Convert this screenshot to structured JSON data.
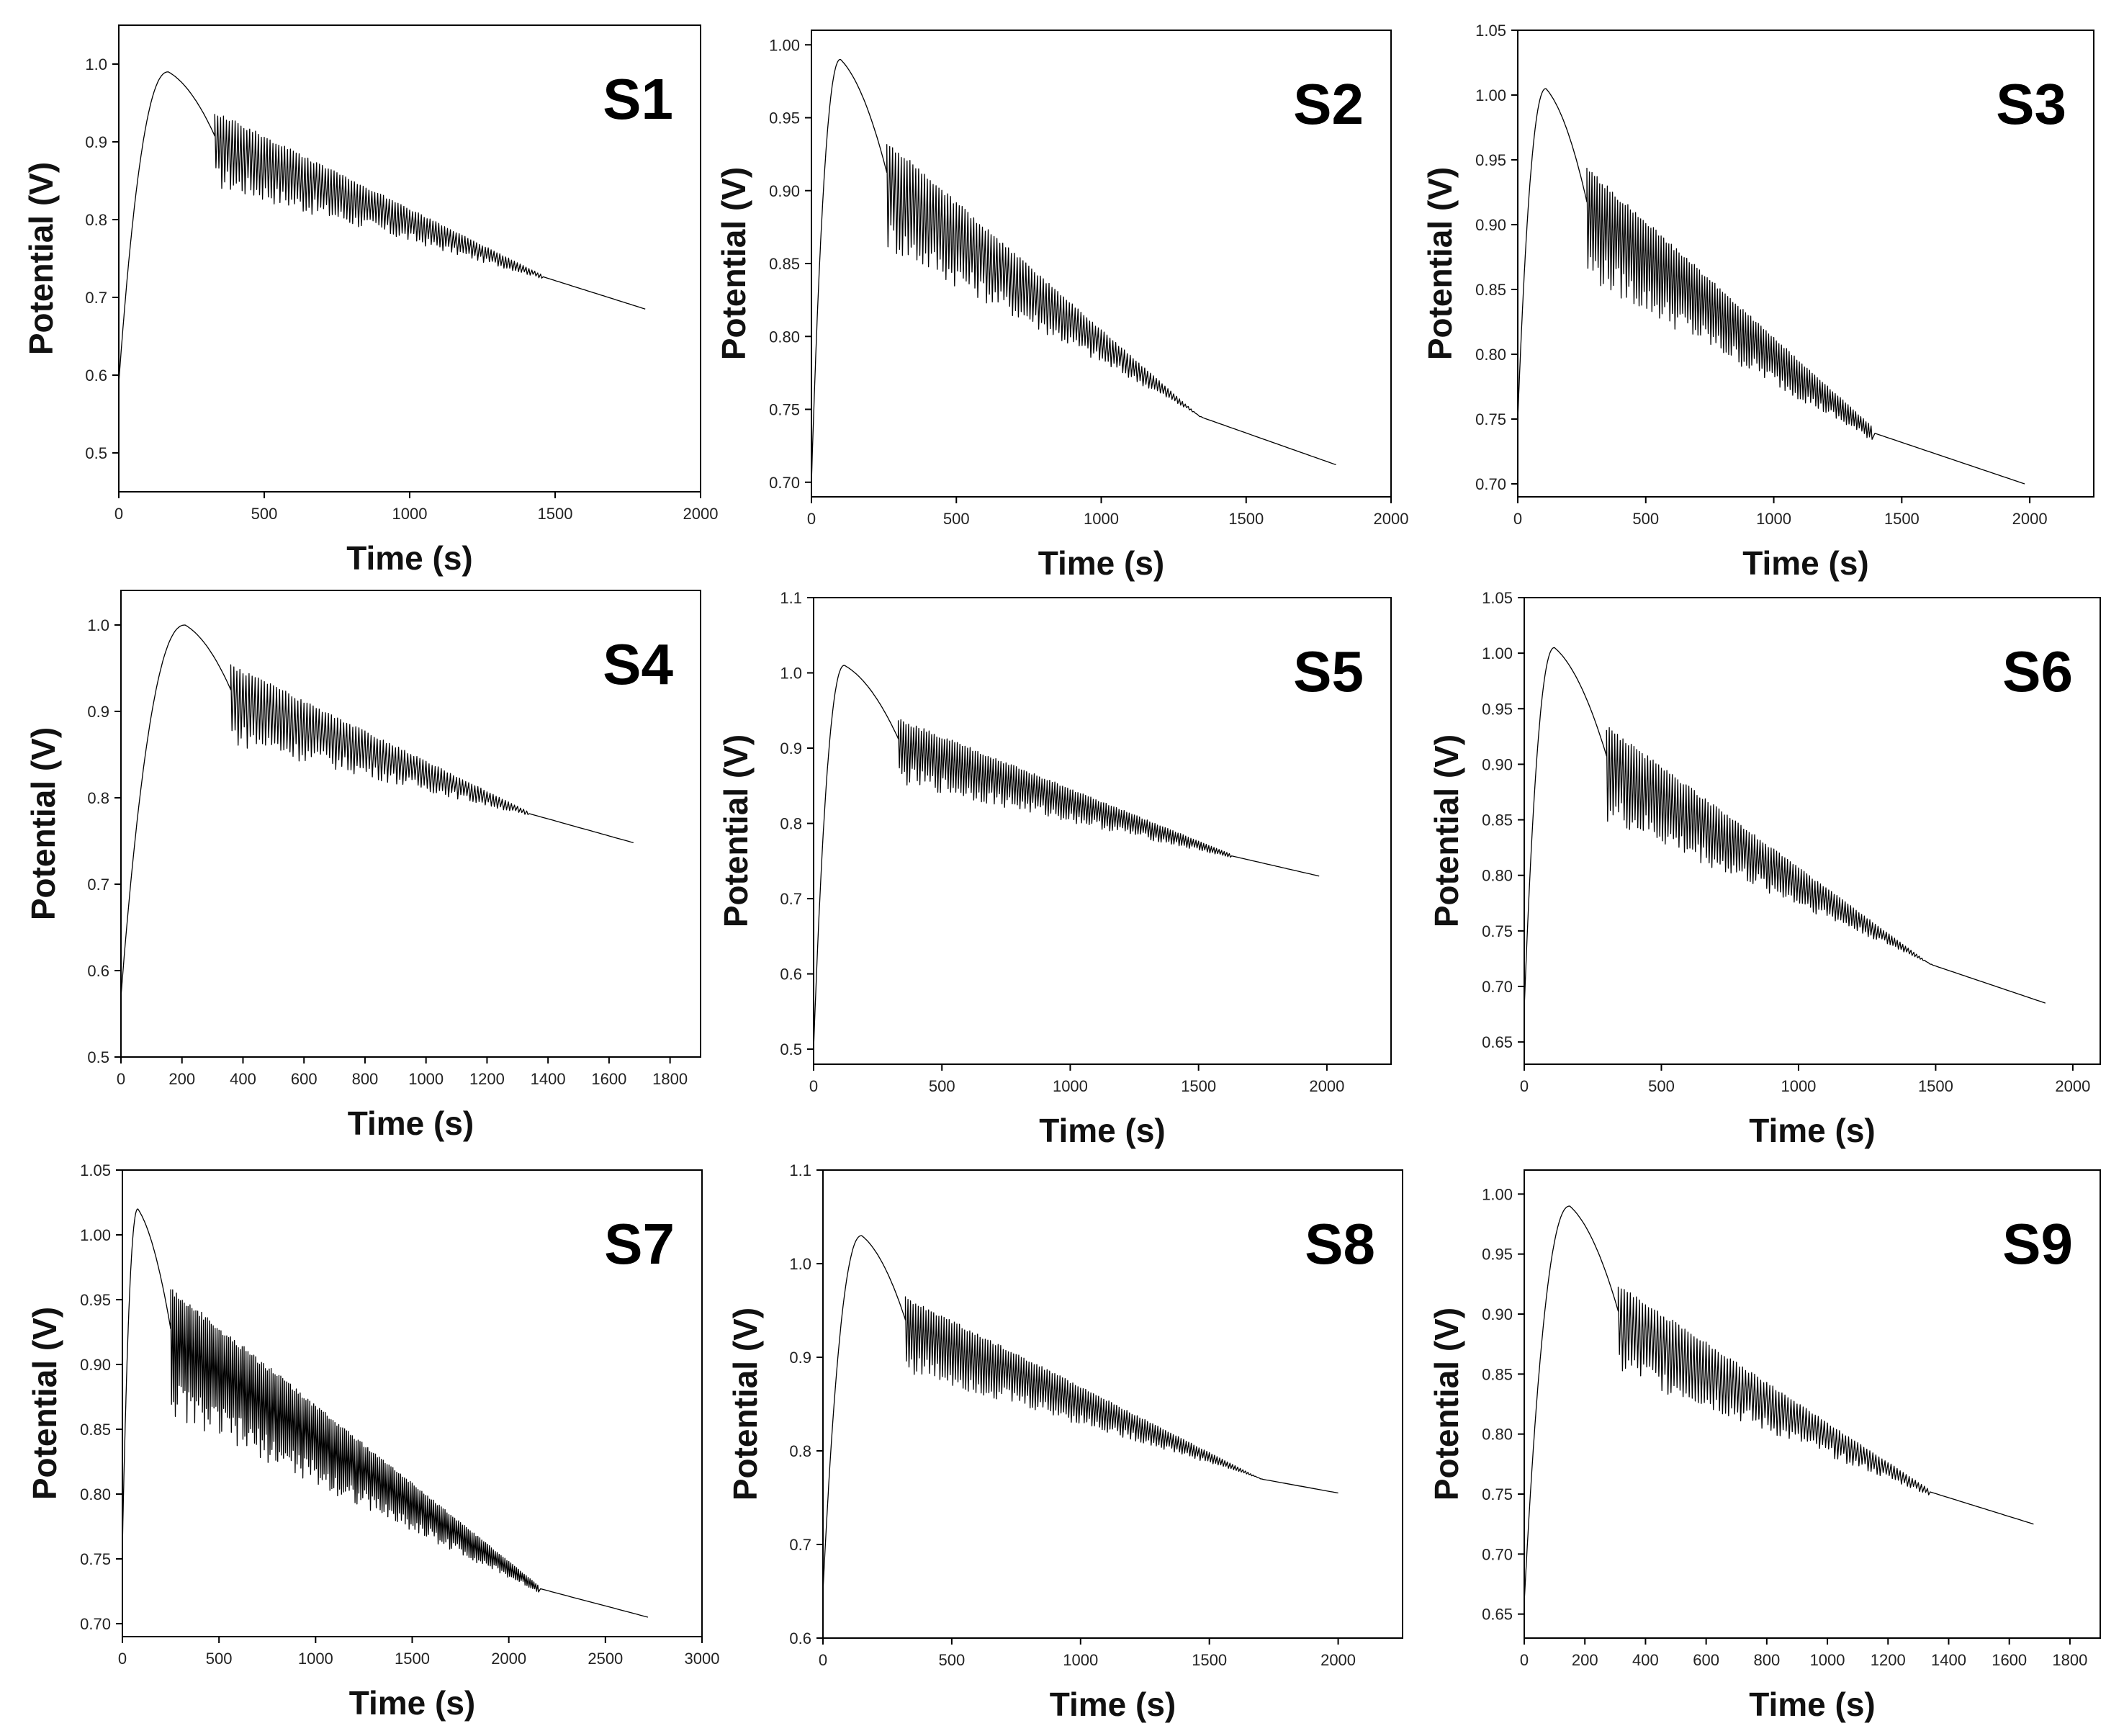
{
  "chart_data": [
    {
      "type": "line",
      "label": "S1",
      "xlabel": "Time (s)",
      "ylabel": "Potential (V)",
      "xlim": [
        0,
        2000
      ],
      "ylim": [
        0.45,
        1.05
      ],
      "xticks": [
        0,
        500,
        1000,
        1500,
        2000
      ],
      "yticks": [
        0.5,
        0.6,
        0.7,
        0.8,
        0.9,
        1.0
      ],
      "ydec": 1,
      "peak": {
        "t": 170,
        "v": 0.99
      },
      "onset_t": 330,
      "end_t": 1810,
      "end_v": 0.685,
      "start_v": 0.59,
      "osc_top": [
        0.94,
        0.73
      ],
      "osc_bottom": [
        0.855,
        0.725
      ],
      "osc_end_t": 1450,
      "grid": false,
      "legend": "none"
    },
    {
      "type": "line",
      "label": "S2",
      "xlabel": "Time (s)",
      "ylabel": "Potential (V)",
      "xlim": [
        0,
        2000
      ],
      "ylim": [
        0.69,
        1.01
      ],
      "xticks": [
        0,
        500,
        1000,
        1500,
        2000
      ],
      "yticks": [
        0.7,
        0.75,
        0.8,
        0.85,
        0.9,
        0.95,
        1.0
      ],
      "ydec": 2,
      "peak": {
        "t": 100,
        "v": 0.99
      },
      "onset_t": 260,
      "end_t": 1810,
      "end_v": 0.712,
      "start_v": 0.7,
      "osc_top": [
        0.935,
        0.745
      ],
      "osc_bottom": [
        0.87,
        0.745
      ],
      "osc_end_t": 1340,
      "grid": false,
      "legend": "none"
    },
    {
      "type": "line",
      "label": "S3",
      "xlabel": "Time (s)",
      "ylabel": "Potential (V)",
      "xlim": [
        0,
        2250
      ],
      "ylim": [
        0.69,
        1.05
      ],
      "xticks": [
        0,
        500,
        1000,
        1500,
        2000
      ],
      "yticks": [
        0.7,
        0.75,
        0.8,
        0.85,
        0.9,
        0.95,
        1.0,
        1.05
      ],
      "ydec": 2,
      "peak": {
        "t": 110,
        "v": 1.005
      },
      "onset_t": 270,
      "end_t": 1980,
      "end_v": 0.7,
      "start_v": 0.75,
      "osc_top": [
        0.945,
        0.745
      ],
      "osc_bottom": [
        0.87,
        0.735
      ],
      "osc_end_t": 1380,
      "grid": false,
      "legend": "none"
    },
    {
      "type": "line",
      "label": "S4",
      "xlabel": "Time (s)",
      "ylabel": "Potential (V)",
      "xlim": [
        0,
        1900
      ],
      "ylim": [
        0.5,
        1.04
      ],
      "xticks": [
        0,
        200,
        400,
        600,
        800,
        1000,
        1200,
        1400,
        1600,
        1800
      ],
      "yticks": [
        0.5,
        0.6,
        0.7,
        0.8,
        0.9,
        1.0
      ],
      "ydec": 1,
      "peak": {
        "t": 210,
        "v": 1.0
      },
      "onset_t": 360,
      "end_t": 1680,
      "end_v": 0.748,
      "start_v": 0.57,
      "osc_top": [
        0.955,
        0.785
      ],
      "osc_bottom": [
        0.875,
        0.78
      ],
      "osc_end_t": 1330,
      "grid": false,
      "legend": "none"
    },
    {
      "type": "line",
      "label": "S5",
      "xlabel": "Time (s)",
      "ylabel": "Potential (V)",
      "xlim": [
        0,
        2250
      ],
      "ylim": [
        0.48,
        1.1
      ],
      "xticks": [
        0,
        500,
        1000,
        1500,
        2000
      ],
      "yticks": [
        0.5,
        0.6,
        0.7,
        0.8,
        0.9,
        1.0,
        1.1
      ],
      "ydec": 1,
      "peak": {
        "t": 120,
        "v": 1.01
      },
      "onset_t": 330,
      "end_t": 1970,
      "end_v": 0.73,
      "start_v": 0.5,
      "osc_top": [
        0.94,
        0.76
      ],
      "osc_bottom": [
        0.865,
        0.755
      ],
      "osc_end_t": 1620,
      "grid": false,
      "legend": "none"
    },
    {
      "type": "line",
      "label": "S6",
      "xlabel": "Time (s)",
      "ylabel": "Potential (V)",
      "xlim": [
        0,
        2100
      ],
      "ylim": [
        0.63,
        1.05
      ],
      "xticks": [
        0,
        500,
        1000,
        1500,
        2000
      ],
      "yticks": [
        0.65,
        0.7,
        0.75,
        0.8,
        0.85,
        0.9,
        0.95,
        1.0,
        1.05
      ],
      "ydec": 2,
      "peak": {
        "t": 110,
        "v": 1.005
      },
      "onset_t": 300,
      "end_t": 1900,
      "end_v": 0.685,
      "start_v": 0.68,
      "osc_top": [
        0.935,
        0.72
      ],
      "osc_bottom": [
        0.86,
        0.72
      ],
      "osc_end_t": 1480,
      "grid": false,
      "legend": "none"
    },
    {
      "type": "line",
      "label": "S7",
      "xlabel": "Time (s)",
      "ylabel": "Potential (V)",
      "xlim": [
        0,
        3000
      ],
      "ylim": [
        0.69,
        1.05
      ],
      "xticks": [
        0,
        500,
        1000,
        1500,
        2000,
        2500,
        3000
      ],
      "yticks": [
        0.7,
        0.75,
        0.8,
        0.85,
        0.9,
        0.95,
        1.0,
        1.05
      ],
      "ydec": 2,
      "peak": {
        "t": 80,
        "v": 1.02
      },
      "onset_t": 250,
      "end_t": 2720,
      "end_v": 0.705,
      "start_v": 0.76,
      "osc_top": [
        0.96,
        0.73
      ],
      "osc_bottom": [
        0.875,
        0.725
      ],
      "osc_end_t": 2150,
      "grid": false,
      "legend": "none"
    },
    {
      "type": "line",
      "label": "S8",
      "xlabel": "Time (s)",
      "ylabel": "Potential (V)",
      "xlim": [
        0,
        2250
      ],
      "ylim": [
        0.6,
        1.1
      ],
      "xticks": [
        0,
        500,
        1000,
        1500,
        2000
      ],
      "yticks": [
        0.6,
        0.7,
        0.8,
        0.9,
        1.0,
        1.1
      ],
      "ydec": 1,
      "peak": {
        "t": 150,
        "v": 1.03
      },
      "onset_t": 320,
      "end_t": 2000,
      "end_v": 0.755,
      "start_v": 0.65,
      "osc_top": [
        0.965,
        0.77
      ],
      "osc_bottom": [
        0.895,
        0.77
      ],
      "osc_end_t": 1700,
      "grid": false,
      "legend": "none"
    },
    {
      "type": "line",
      "label": "S9",
      "xlabel": "Time (s)",
      "ylabel": "Potential (V)",
      "xlim": [
        0,
        1900
      ],
      "ylim": [
        0.63,
        1.02
      ],
      "xticks": [
        0,
        200,
        400,
        600,
        800,
        1000,
        1200,
        1400,
        1600,
        1800
      ],
      "yticks": [
        0.65,
        0.7,
        0.75,
        0.8,
        0.85,
        0.9,
        0.95,
        1.0
      ],
      "ydec": 2,
      "peak": {
        "t": 150,
        "v": 0.99
      },
      "onset_t": 310,
      "end_t": 1680,
      "end_v": 0.725,
      "start_v": 0.66,
      "osc_top": [
        0.925,
        0.755
      ],
      "osc_bottom": [
        0.86,
        0.75
      ],
      "osc_end_t": 1330,
      "grid": false,
      "legend": "none"
    }
  ]
}
